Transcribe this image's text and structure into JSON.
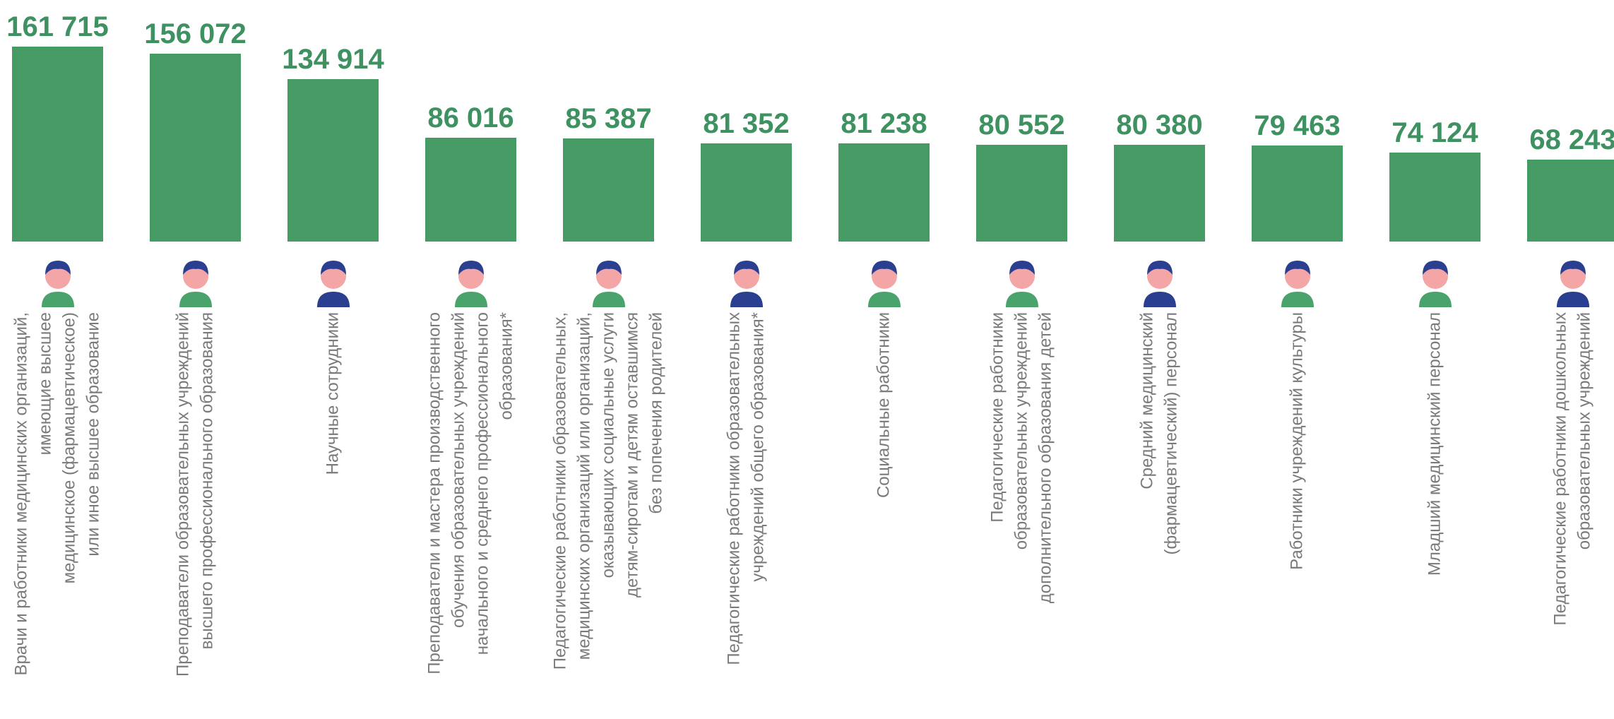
{
  "chart_data": {
    "type": "bar",
    "categories": [
      "Врачи и работники медицинских организаций,\nимеющие высшее\nмедицинское (фармацевтическое)\nили иное высшее образование",
      "Преподаватели образовательных учреждений\nвысшего профессионального образования",
      "Научные сотрудники",
      "Преподаватели и мастера производственного\nобучения образовательных учреждений\nначального и среднего профессионального\nобразования*",
      "Педагогические работники образовательных,\nмедицинских организаций или организаций,\nоказывающих социальные услуги\nдетям-сиротам и детям оставшимся\nбез попечения родителей",
      "Педагогические работники образовательных\nучреждений общего образования*",
      "Социальные работники",
      "Педагогические работники\nобразовательных учреждений\nдополнительного образования детей",
      "Средний медицинский\n(фармацевтический) персонал",
      "Работники учреждений культуры",
      "Младший медицинский персонал",
      "Педагогические работники дошкольных\nобразовательных учреждений"
    ],
    "values": [
      161715,
      156072,
      134914,
      86016,
      85387,
      81352,
      81238,
      80552,
      80380,
      79463,
      74124,
      68243
    ],
    "value_labels": [
      "161 715",
      "156 072",
      "134 914",
      "86 016",
      "85 387",
      "81 352",
      "81 238",
      "80 552",
      "80 380",
      "79 463",
      "74 124",
      "68 243"
    ],
    "color": "#469b65",
    "ylim": [
      0,
      170000
    ]
  }
}
